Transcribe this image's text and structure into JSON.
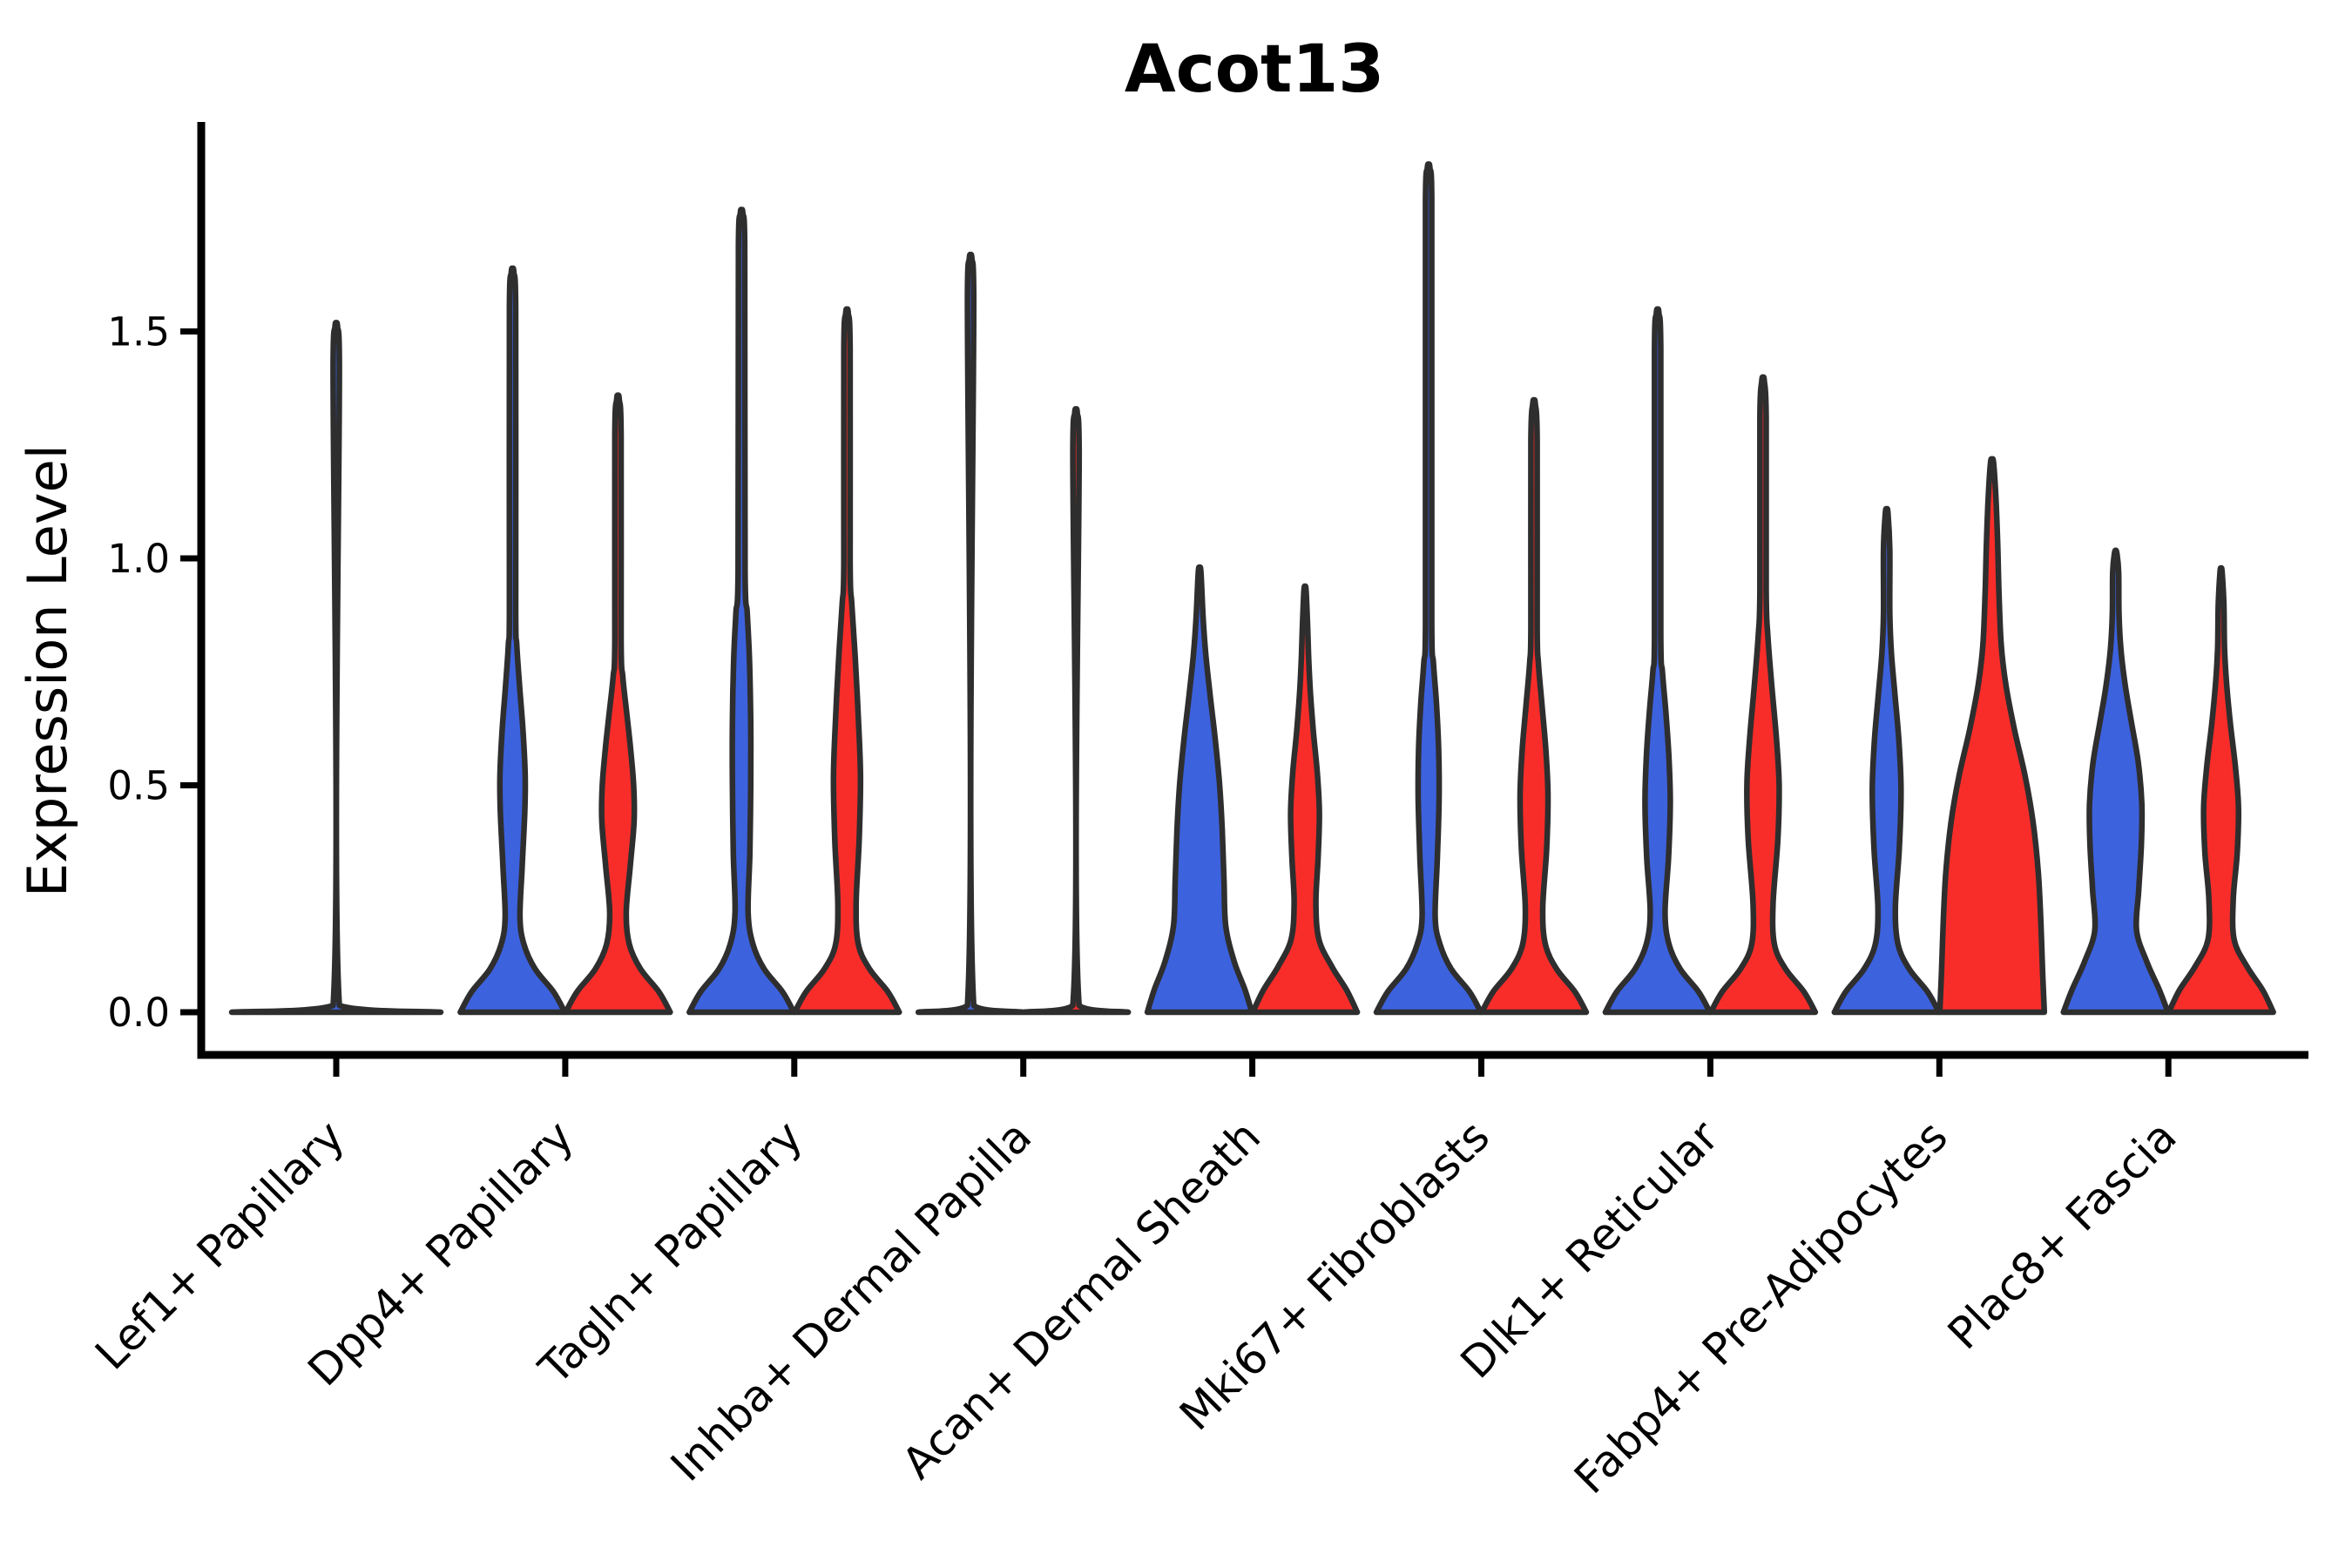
{
  "title": "Acot13",
  "y_axis": {
    "label": "Expression Level",
    "tick_labels": [
      "0.0",
      "0.5",
      "1.0",
      "1.5"
    ],
    "tick_values": [
      0.0,
      0.5,
      1.0,
      1.5
    ]
  },
  "colors": {
    "blue": "#3D62DE",
    "red": "#F82D2A",
    "outline": "#2E2E2E",
    "axis": "#000000",
    "background": "#ffffff"
  },
  "chart_data": {
    "type": "violin",
    "title": "Acot13",
    "xlabel": "",
    "ylabel": "Expression Level",
    "ylim": [
      -0.09,
      1.96
    ],
    "yticks": [
      0.0,
      0.5,
      1.0,
      1.5
    ],
    "grid": false,
    "legend": "none",
    "hue_colors": {
      "blue": "#3D62DE",
      "red": "#F82D2A"
    },
    "categories": [
      "Lef1+ Papillary",
      "Dpp4+ Papillary",
      "Tagln+ Papillary",
      "Inhba+ Dermal Papilla",
      "Acan+ Dermal Sheath",
      "Mki67+ Fibroblasts",
      "Dlk1+ Reticular",
      "Fabp4+ Pre-Adipocytes",
      "Plac8+ Fascia"
    ],
    "groups": [
      {
        "category": "Lef1+ Papillary",
        "violins": [
          {
            "hue": "blue",
            "max": 1.51,
            "shape": "flat-with-spike",
            "profile": [
              [
                0,
                120
              ],
              [
                0.015,
                3.6
              ],
              [
                1.43,
                3.6
              ],
              [
                1.51,
                1.5
              ]
            ]
          }
        ]
      },
      {
        "category": "Dpp4+ Papillary",
        "violins": [
          {
            "hue": "blue",
            "max": 1.63,
            "shape": "base-bulge-spike",
            "profile": [
              [
                0,
                60
              ],
              [
                0.045,
                47
              ],
              [
                0.095,
                26
              ],
              [
                0.15,
                13
              ],
              [
                0.21,
                8.5
              ],
              [
                0.32,
                11
              ],
              [
                0.44,
                14
              ],
              [
                0.52,
                14.5
              ],
              [
                0.62,
                12
              ],
              [
                0.72,
                8
              ],
              [
                0.81,
                4.8
              ],
              [
                0.88,
                3.6
              ],
              [
                1.55,
                3.6
              ],
              [
                1.63,
                1.5
              ]
            ]
          },
          {
            "hue": "red",
            "max": 1.35,
            "shape": "base-bulge-spike",
            "profile": [
              [
                0,
                60
              ],
              [
                0.045,
                47
              ],
              [
                0.095,
                26
              ],
              [
                0.15,
                13
              ],
              [
                0.22,
                9.5
              ],
              [
                0.32,
                14
              ],
              [
                0.42,
                18.5
              ],
              [
                0.5,
                18
              ],
              [
                0.58,
                14.5
              ],
              [
                0.66,
                10
              ],
              [
                0.74,
                5.5
              ],
              [
                0.82,
                3.6
              ],
              [
                1.27,
                3.6
              ],
              [
                1.35,
                1.5
              ]
            ]
          }
        ]
      },
      {
        "category": "Tagln+ Papillary",
        "violins": [
          {
            "hue": "blue",
            "max": 1.76,
            "shape": "base-bulge-spike",
            "profile": [
              [
                0,
                60
              ],
              [
                0.045,
                47
              ],
              [
                0.095,
                26
              ],
              [
                0.15,
                13
              ],
              [
                0.22,
                7.5
              ],
              [
                0.35,
                9.5
              ],
              [
                0.5,
                10.5
              ],
              [
                0.64,
                10.5
              ],
              [
                0.78,
                9
              ],
              [
                0.88,
                6.5
              ],
              [
                0.97,
                4
              ],
              [
                1.69,
                3.6
              ],
              [
                1.76,
                1.5
              ]
            ]
          },
          {
            "hue": "red",
            "max": 1.54,
            "shape": "base-bulge-spike",
            "profile": [
              [
                0,
                60
              ],
              [
                0.045,
                47
              ],
              [
                0.095,
                26
              ],
              [
                0.15,
                13
              ],
              [
                0.24,
                10.5
              ],
              [
                0.38,
                14
              ],
              [
                0.52,
                15.5
              ],
              [
                0.65,
                13
              ],
              [
                0.78,
                9.5
              ],
              [
                0.9,
                5.5
              ],
              [
                0.99,
                3.6
              ],
              [
                1.46,
                3.6
              ],
              [
                1.54,
                1.5
              ]
            ]
          }
        ]
      },
      {
        "category": "Inhba+ Dermal Papilla",
        "violins": [
          {
            "hue": "blue",
            "max": 1.66,
            "shape": "flat-with-spike",
            "profile": [
              [
                0,
                60
              ],
              [
                0.015,
                3.6
              ],
              [
                1.58,
                3.6
              ],
              [
                1.66,
                1.5
              ]
            ]
          },
          {
            "hue": "red",
            "max": 1.32,
            "shape": "flat-with-spike",
            "profile": [
              [
                0,
                60
              ],
              [
                0.015,
                3.6
              ],
              [
                1.24,
                3.6
              ],
              [
                1.32,
                1.5
              ]
            ]
          }
        ]
      },
      {
        "category": "Acan+ Dermal Sheath",
        "violins": [
          {
            "hue": "blue",
            "max": 0.97,
            "shape": "broad-taper",
            "profile": [
              [
                0,
                60
              ],
              [
                0.05,
                52
              ],
              [
                0.11,
                40
              ],
              [
                0.19,
                30
              ],
              [
                0.29,
                28
              ],
              [
                0.4,
                26
              ],
              [
                0.5,
                23
              ],
              [
                0.6,
                18
              ],
              [
                0.7,
                12
              ],
              [
                0.79,
                7
              ],
              [
                0.87,
                4
              ],
              [
                0.97,
                1.5
              ]
            ]
          },
          {
            "hue": "red",
            "max": 0.93,
            "shape": "base-bulge-taper",
            "profile": [
              [
                0,
                60
              ],
              [
                0.048,
                48
              ],
              [
                0.1,
                31
              ],
              [
                0.16,
                16
              ],
              [
                0.24,
                12.5
              ],
              [
                0.34,
                15
              ],
              [
                0.44,
                16.5
              ],
              [
                0.53,
                14
              ],
              [
                0.62,
                9.5
              ],
              [
                0.71,
                6
              ],
              [
                0.79,
                4
              ],
              [
                0.86,
                2.8
              ],
              [
                0.93,
                1.2
              ]
            ]
          }
        ]
      },
      {
        "category": "Mki67+ Fibroblasts",
        "violins": [
          {
            "hue": "blue",
            "max": 1.86,
            "shape": "base-bulge-spike",
            "profile": [
              [
                0,
                60
              ],
              [
                0.045,
                47
              ],
              [
                0.095,
                26
              ],
              [
                0.15,
                13
              ],
              [
                0.21,
                7.5
              ],
              [
                0.34,
                10
              ],
              [
                0.47,
                12
              ],
              [
                0.58,
                11.5
              ],
              [
                0.68,
                9
              ],
              [
                0.77,
                5.5
              ],
              [
                0.85,
                3.6
              ],
              [
                1.79,
                3.6
              ],
              [
                1.86,
                1.5
              ]
            ]
          },
          {
            "hue": "red",
            "max": 1.34,
            "shape": "base-bulge-spike",
            "profile": [
              [
                0,
                60
              ],
              [
                0.045,
                47
              ],
              [
                0.095,
                26
              ],
              [
                0.15,
                13
              ],
              [
                0.23,
                10
              ],
              [
                0.36,
                14.5
              ],
              [
                0.48,
                16
              ],
              [
                0.58,
                13.5
              ],
              [
                0.68,
                9
              ],
              [
                0.77,
                5
              ],
              [
                0.85,
                3.6
              ],
              [
                1.26,
                3.6
              ],
              [
                1.34,
                1.5
              ]
            ]
          }
        ]
      },
      {
        "category": "Dlk1+ Reticular",
        "violins": [
          {
            "hue": "blue",
            "max": 1.54,
            "shape": "base-bulge-spike",
            "profile": [
              [
                0,
                60
              ],
              [
                0.045,
                47
              ],
              [
                0.095,
                26
              ],
              [
                0.15,
                13
              ],
              [
                0.22,
                8.5
              ],
              [
                0.34,
                12.5
              ],
              [
                0.46,
                14.5
              ],
              [
                0.56,
                13
              ],
              [
                0.66,
                9.5
              ],
              [
                0.75,
                5.5
              ],
              [
                0.83,
                3.6
              ],
              [
                1.46,
                3.6
              ],
              [
                1.54,
                1.5
              ]
            ]
          },
          {
            "hue": "red",
            "max": 1.39,
            "shape": "base-bulge-spike",
            "profile": [
              [
                0,
                60
              ],
              [
                0.045,
                47
              ],
              [
                0.095,
                26
              ],
              [
                0.15,
                13
              ],
              [
                0.24,
                11.5
              ],
              [
                0.38,
                17
              ],
              [
                0.5,
                18.5
              ],
              [
                0.6,
                15.5
              ],
              [
                0.72,
                10
              ],
              [
                0.83,
                5.5
              ],
              [
                0.93,
                3.6
              ],
              [
                1.31,
                3.6
              ],
              [
                1.39,
                1.5
              ]
            ]
          }
        ]
      },
      {
        "category": "Fabp4+ Pre-Adipocytes",
        "violins": [
          {
            "hue": "blue",
            "max": 1.1,
            "shape": "base-bulge-spike",
            "profile": [
              [
                0,
                60
              ],
              [
                0.045,
                47
              ],
              [
                0.095,
                26
              ],
              [
                0.15,
                13
              ],
              [
                0.23,
                10
              ],
              [
                0.36,
                14.5
              ],
              [
                0.49,
                16.5
              ],
              [
                0.6,
                14
              ],
              [
                0.7,
                9.5
              ],
              [
                0.79,
                5.5
              ],
              [
                0.88,
                3.6
              ],
              [
                1.02,
                3.6
              ],
              [
                1.1,
                1.5
              ]
            ]
          },
          {
            "hue": "red",
            "max": 1.21,
            "shape": "wide-cone-spike",
            "profile": [
              [
                0,
                60
              ],
              [
                0.09,
                58
              ],
              [
                0.2,
                56
              ],
              [
                0.31,
                53
              ],
              [
                0.42,
                47
              ],
              [
                0.52,
                38
              ],
              [
                0.62,
                26
              ],
              [
                0.72,
                16
              ],
              [
                0.81,
                10.5
              ],
              [
                0.92,
                8
              ],
              [
                1.03,
                6.5
              ],
              [
                1.13,
                4.5
              ],
              [
                1.21,
                1.8
              ]
            ]
          }
        ]
      },
      {
        "category": "Plac8+ Fascia",
        "violins": [
          {
            "hue": "blue",
            "max": 1.01,
            "shape": "wide-bulge-taper",
            "profile": [
              [
                0,
                60
              ],
              [
                0.05,
                50
              ],
              [
                0.11,
                36
              ],
              [
                0.18,
                24
              ],
              [
                0.27,
                26.5
              ],
              [
                0.37,
                29.5
              ],
              [
                0.46,
                30
              ],
              [
                0.55,
                26
              ],
              [
                0.64,
                18
              ],
              [
                0.72,
                11
              ],
              [
                0.8,
                6
              ],
              [
                0.88,
                3.8
              ],
              [
                0.97,
                3.4
              ],
              [
                1.01,
                1.5
              ]
            ]
          },
          {
            "hue": "red",
            "max": 0.97,
            "shape": "base-bulge-taper",
            "profile": [
              [
                0,
                60
              ],
              [
                0.048,
                48
              ],
              [
                0.1,
                30
              ],
              [
                0.16,
                15
              ],
              [
                0.25,
                14
              ],
              [
                0.35,
                18.5
              ],
              [
                0.45,
                20
              ],
              [
                0.54,
                16.5
              ],
              [
                0.63,
                11
              ],
              [
                0.72,
                6.5
              ],
              [
                0.8,
                4
              ],
              [
                0.9,
                3.2
              ],
              [
                0.97,
                1.2
              ]
            ]
          }
        ]
      }
    ]
  }
}
